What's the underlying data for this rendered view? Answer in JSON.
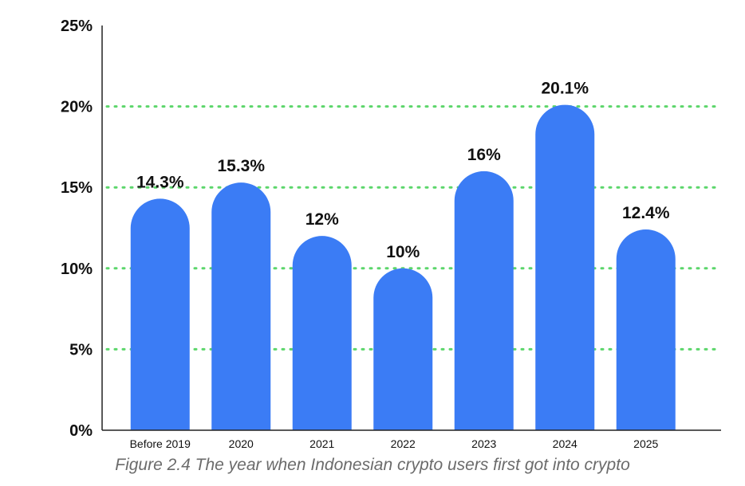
{
  "chart_data": {
    "type": "bar",
    "categories": [
      "Before 2019",
      "2020",
      "2021",
      "2022",
      "2023",
      "2024",
      "2025"
    ],
    "values": [
      14.3,
      15.3,
      12,
      10,
      16,
      20.1,
      12.4
    ],
    "value_labels": [
      "14.3%",
      "15.3%",
      "12%",
      "10%",
      "16%",
      "20.1%",
      "12.4%"
    ],
    "ylim": [
      0,
      25
    ],
    "yticks": [
      0,
      5,
      10,
      15,
      20,
      25
    ],
    "ytick_labels": [
      "0%",
      "5%",
      "10%",
      "15%",
      "20%",
      "25%"
    ],
    "grid": true,
    "colors": {
      "bar": "#3b7cf5",
      "grid": "#5cd66b",
      "axis": "#222222",
      "text": "#111111"
    },
    "caption": "Figure 2.4 The year when Indonesian crypto users first got into crypto"
  }
}
